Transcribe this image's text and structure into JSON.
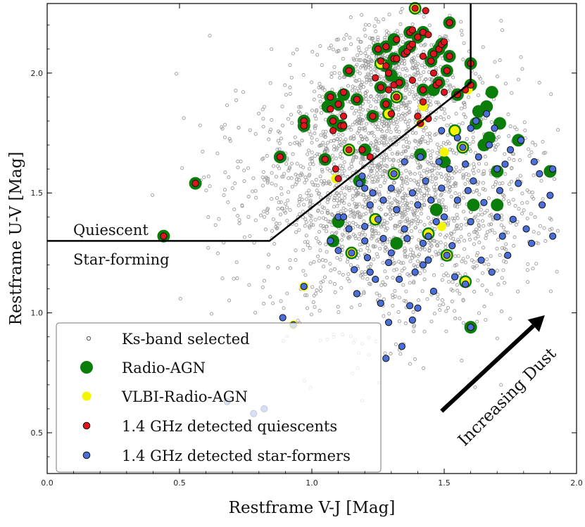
{
  "chart_data": {
    "type": "scatter",
    "title": "",
    "xlabel": "Restframe V-J [Mag]",
    "ylabel": "Restframe U-V [Mag]",
    "xlim": [
      0.0,
      2.0
    ],
    "ylim": [
      0.33,
      2.29
    ],
    "xticks": [
      "0.0",
      "0.5",
      "1.0",
      "1.5",
      "2.0"
    ],
    "yticks": [
      "0.5",
      "1.0",
      "1.5",
      "2.0"
    ],
    "grid": false,
    "legend_position": "bottom-left",
    "regions": {
      "quiescent_label": "Quiescent",
      "starforming_label": "Star-forming",
      "boundary": [
        [
          0.0,
          1.3
        ],
        [
          0.84,
          1.3
        ],
        [
          1.6,
          1.96
        ],
        [
          1.6,
          2.29
        ]
      ]
    },
    "annotation": {
      "text": "Increasing Dust",
      "arrow_from": [
        1.49,
        0.59
      ],
      "arrow_to": [
        1.88,
        0.99
      ]
    },
    "legend": [
      {
        "label": "Ks-band selected",
        "marker": "small-gray-circle"
      },
      {
        "label": "Radio-AGN",
        "marker": "large-green-circle"
      },
      {
        "label": "VLBI-Radio-AGN",
        "marker": "yellow-circle"
      },
      {
        "label": "1.4 GHz detected quiescents",
        "marker": "red-circle"
      },
      {
        "label": "1.4 GHz detected star-formers",
        "marker": "blue-circle"
      }
    ],
    "colors": {
      "ks": "#999999",
      "radio_agn": "#0a7d0a",
      "vlbi": "#f5f500",
      "quiescent": "#e0151b",
      "starformer": "#4a6fd8"
    },
    "series": [
      {
        "name": "1.4 GHz detected quiescents",
        "points": [
          [
            0.44,
            1.32
          ],
          [
            0.56,
            1.54
          ],
          [
            0.88,
            1.65
          ],
          [
            0.97,
            1.8
          ],
          [
            0.97,
            1.78
          ],
          [
            1.05,
            1.64
          ],
          [
            1.07,
            1.9
          ],
          [
            1.07,
            1.85
          ],
          [
            1.08,
            1.8
          ],
          [
            1.08,
            1.76
          ],
          [
            1.09,
            1.6
          ],
          [
            1.1,
            1.87
          ],
          [
            1.1,
            1.56
          ],
          [
            1.11,
            1.78
          ],
          [
            1.12,
            1.92
          ],
          [
            1.12,
            1.82
          ],
          [
            1.12,
            1.78
          ],
          [
            1.14,
            2.01
          ],
          [
            1.14,
            1.68
          ],
          [
            1.17,
            1.89
          ],
          [
            1.19,
            1.68
          ],
          [
            1.22,
            1.65
          ],
          [
            1.23,
            1.82
          ],
          [
            1.24,
            1.98
          ],
          [
            1.25,
            2.1
          ],
          [
            1.26,
            2.05
          ],
          [
            1.26,
            1.94
          ],
          [
            1.28,
            2.11
          ],
          [
            1.28,
            2.03
          ],
          [
            1.28,
            1.87
          ],
          [
            1.29,
            2.0
          ],
          [
            1.29,
            1.93
          ],
          [
            1.3,
            1.83
          ],
          [
            1.31,
            2.06
          ],
          [
            1.31,
            1.95
          ],
          [
            1.32,
            2.14
          ],
          [
            1.32,
            2.06
          ],
          [
            1.32,
            1.9
          ],
          [
            1.33,
            1.96
          ],
          [
            1.35,
            2.08
          ],
          [
            1.36,
            2.09
          ],
          [
            1.37,
            2.17
          ],
          [
            1.37,
            2.11
          ],
          [
            1.38,
            2.18
          ],
          [
            1.38,
            2.12
          ],
          [
            1.38,
            1.97
          ],
          [
            1.39,
            2.27
          ],
          [
            1.4,
            2.15
          ],
          [
            1.4,
            1.82
          ],
          [
            1.41,
            1.79
          ],
          [
            1.42,
            2.17
          ],
          [
            1.42,
            2.07
          ],
          [
            1.42,
            1.93
          ],
          [
            1.42,
            1.88
          ],
          [
            1.43,
            2.26
          ],
          [
            1.44,
            2.16
          ],
          [
            1.44,
            1.81
          ],
          [
            1.45,
            2.05
          ],
          [
            1.46,
            2.08
          ],
          [
            1.46,
            2.0
          ],
          [
            1.47,
            1.95
          ],
          [
            1.48,
            2.1
          ],
          [
            1.48,
            1.96
          ],
          [
            1.49,
            2.12
          ],
          [
            1.5,
            2.13
          ],
          [
            1.5,
            1.92
          ],
          [
            1.51,
            2.01
          ],
          [
            1.52,
            2.07
          ],
          [
            1.52,
            2.21
          ],
          [
            1.55,
            1.91
          ],
          [
            1.58,
            1.93
          ],
          [
            1.6,
            1.95
          ],
          [
            1.6,
            2.04
          ]
        ]
      },
      {
        "name": "1.4 GHz detected star-formers",
        "points": [
          [
            0.68,
            0.63
          ],
          [
            0.78,
            0.58
          ],
          [
            0.82,
            0.6
          ],
          [
            0.89,
            0.98
          ],
          [
            0.93,
            0.95
          ],
          [
            0.97,
            1.11
          ],
          [
            1.07,
            1.3
          ],
          [
            1.1,
            1.4
          ],
          [
            1.1,
            1.26
          ],
          [
            1.12,
            1.4
          ],
          [
            1.14,
            1.35
          ],
          [
            1.15,
            1.25
          ],
          [
            1.16,
            1.18
          ],
          [
            1.17,
            1.08
          ],
          [
            1.18,
            1.54
          ],
          [
            1.19,
            1.57
          ],
          [
            1.2,
            1.36
          ],
          [
            1.2,
            1.52
          ],
          [
            1.2,
            1.3
          ],
          [
            1.21,
            1.23
          ],
          [
            1.22,
            1.45
          ],
          [
            1.22,
            1.17
          ],
          [
            1.23,
            1.5
          ],
          [
            1.24,
            1.14
          ],
          [
            1.25,
            1.39
          ],
          [
            1.26,
            1.04
          ],
          [
            1.27,
            1.47
          ],
          [
            1.27,
            1.31
          ],
          [
            1.28,
            0.81
          ],
          [
            1.29,
            1.21
          ],
          [
            1.29,
            0.96
          ],
          [
            1.3,
            1.52
          ],
          [
            1.3,
            1.25
          ],
          [
            1.31,
            1.58
          ],
          [
            1.32,
            1.43
          ],
          [
            1.33,
            1.14
          ],
          [
            1.34,
            0.86
          ],
          [
            1.35,
            1.63
          ],
          [
            1.35,
            1.35
          ],
          [
            1.36,
            1.31
          ],
          [
            1.37,
            1.03
          ],
          [
            1.38,
            1.5
          ],
          [
            1.38,
            0.97
          ],
          [
            1.39,
            1.17
          ],
          [
            1.4,
            1.45
          ],
          [
            1.4,
            1.02
          ],
          [
            1.41,
            1.65
          ],
          [
            1.42,
            1.29
          ],
          [
            1.42,
            1.2
          ],
          [
            1.43,
            1.55
          ],
          [
            1.44,
            1.32
          ],
          [
            1.44,
            1.22
          ],
          [
            1.45,
            1.47
          ],
          [
            1.46,
            1.09
          ],
          [
            1.47,
            1.38
          ],
          [
            1.48,
            1.63
          ],
          [
            1.49,
            1.76
          ],
          [
            1.49,
            1.52
          ],
          [
            1.5,
            1.4
          ],
          [
            1.51,
            1.24
          ],
          [
            1.52,
            1.6
          ],
          [
            1.53,
            1.28
          ],
          [
            1.54,
            1.15
          ],
          [
            1.55,
            1.73
          ],
          [
            1.55,
            1.47
          ],
          [
            1.57,
            1.69
          ],
          [
            1.58,
            1.62
          ],
          [
            1.58,
            1.12
          ],
          [
            1.59,
            1.51
          ],
          [
            1.6,
            1.77
          ],
          [
            1.6,
            1.38
          ],
          [
            1.6,
            0.94
          ],
          [
            1.61,
            1.55
          ],
          [
            1.62,
            1.8
          ],
          [
            1.63,
            1.65
          ],
          [
            1.64,
            1.22
          ],
          [
            1.65,
            1.46
          ],
          [
            1.66,
            1.83
          ],
          [
            1.67,
            1.7
          ],
          [
            1.68,
            1.17
          ],
          [
            1.69,
            1.77
          ],
          [
            1.7,
            1.6
          ],
          [
            1.7,
            1.4
          ],
          [
            1.71,
            1.51
          ],
          [
            1.72,
            1.32
          ],
          [
            1.73,
            1.62
          ],
          [
            1.74,
            1.24
          ],
          [
            1.75,
            1.68
          ],
          [
            1.76,
            1.39
          ],
          [
            1.78,
            1.54
          ],
          [
            1.79,
            1.72
          ],
          [
            1.81,
            1.35
          ],
          [
            1.83,
            1.29
          ],
          [
            1.84,
            1.63
          ],
          [
            1.86,
            1.58
          ],
          [
            1.87,
            1.45
          ],
          [
            1.9,
            1.49
          ],
          [
            1.91,
            1.6
          ],
          [
            1.91,
            1.32
          ]
        ]
      },
      {
        "name": "Radio-AGN",
        "points": [
          [
            0.44,
            1.32
          ],
          [
            0.56,
            1.54
          ],
          [
            0.88,
            1.65
          ],
          [
            0.97,
            1.8
          ],
          [
            0.97,
            1.78
          ],
          [
            1.05,
            1.64
          ],
          [
            1.06,
            1.86
          ],
          [
            1.07,
            1.9
          ],
          [
            1.08,
            1.8
          ],
          [
            1.08,
            1.3
          ],
          [
            1.1,
            1.87
          ],
          [
            1.1,
            1.38
          ],
          [
            1.11,
            1.78
          ],
          [
            1.12,
            1.91
          ],
          [
            1.14,
            2.01
          ],
          [
            1.14,
            1.68
          ],
          [
            1.15,
            1.25
          ],
          [
            1.17,
            1.89
          ],
          [
            1.18,
            1.55
          ],
          [
            1.2,
            1.68
          ],
          [
            1.23,
            1.82
          ],
          [
            1.24,
            1.39
          ],
          [
            1.25,
            2.1
          ],
          [
            1.26,
            2.04
          ],
          [
            1.26,
            1.94
          ],
          [
            1.28,
            2.11
          ],
          [
            1.28,
            2.03
          ],
          [
            1.28,
            1.87
          ],
          [
            1.29,
            1.83
          ],
          [
            1.3,
            1.99
          ],
          [
            1.31,
            2.14
          ],
          [
            1.31,
            2.06
          ],
          [
            1.31,
            1.58
          ],
          [
            1.32,
            1.9
          ],
          [
            1.32,
            1.29
          ],
          [
            1.33,
            1.96
          ],
          [
            1.35,
            2.09
          ],
          [
            1.37,
            2.17
          ],
          [
            1.37,
            2.11
          ],
          [
            1.39,
            2.27
          ],
          [
            1.4,
            2.15
          ],
          [
            1.41,
            1.66
          ],
          [
            1.42,
            2.17
          ],
          [
            1.42,
            1.93
          ],
          [
            1.44,
            1.33
          ],
          [
            1.45,
            2.05
          ],
          [
            1.46,
            2.08
          ],
          [
            1.46,
            1.93
          ],
          [
            1.47,
            1.43
          ],
          [
            1.48,
            2.1
          ],
          [
            1.48,
            1.96
          ],
          [
            1.49,
            2.12
          ],
          [
            1.5,
            1.63
          ],
          [
            1.51,
            2.01
          ],
          [
            1.51,
            1.24
          ],
          [
            1.52,
            2.07
          ],
          [
            1.52,
            2.21
          ],
          [
            1.54,
            1.76
          ],
          [
            1.55,
            1.91
          ],
          [
            1.57,
            1.69
          ],
          [
            1.58,
            1.13
          ],
          [
            1.6,
            1.95
          ],
          [
            1.6,
            2.04
          ],
          [
            1.61,
            1.45
          ],
          [
            1.62,
            1.79
          ],
          [
            1.63,
            1.84
          ],
          [
            1.65,
            1.7
          ],
          [
            1.66,
            1.86
          ],
          [
            1.67,
            1.73
          ],
          [
            1.68,
            1.92
          ],
          [
            1.7,
            1.59
          ],
          [
            1.7,
            1.45
          ],
          [
            1.71,
            1.79
          ],
          [
            1.78,
            1.72
          ],
          [
            1.9,
            1.59
          ],
          [
            1.6,
            0.94
          ]
        ]
      },
      {
        "name": "VLBI-Radio-AGN",
        "points": [
          [
            0.97,
            1.11
          ],
          [
            0.93,
            0.95
          ],
          [
            1.09,
            1.56
          ],
          [
            1.14,
            1.68
          ],
          [
            1.15,
            1.25
          ],
          [
            1.24,
            1.39
          ],
          [
            1.26,
            2.04
          ],
          [
            1.29,
            1.83
          ],
          [
            1.31,
            1.58
          ],
          [
            1.32,
            1.9
          ],
          [
            1.39,
            2.27
          ],
          [
            1.41,
            1.79
          ],
          [
            1.42,
            1.86
          ],
          [
            1.44,
            1.33
          ],
          [
            1.49,
            1.36
          ],
          [
            1.5,
            1.67
          ],
          [
            1.51,
            1.24
          ],
          [
            1.54,
            1.76
          ],
          [
            1.57,
            1.69
          ],
          [
            1.58,
            1.13
          ],
          [
            1.59,
            1.93
          ]
        ]
      }
    ]
  }
}
